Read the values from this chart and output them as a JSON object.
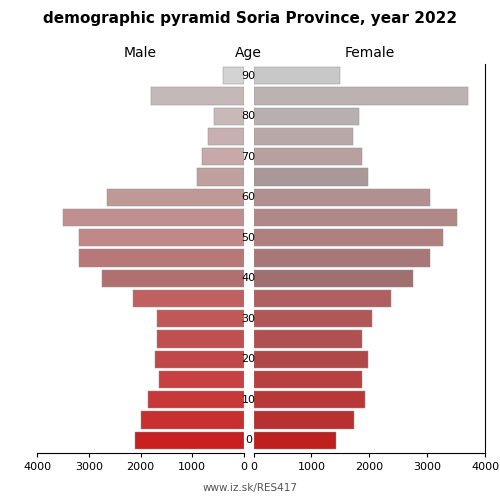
{
  "title": "demographic pyramid Soria Province, year 2022",
  "label_male": "Male",
  "label_female": "Female",
  "label_age": "Age",
  "footer": "www.iz.sk/RES417",
  "age_groups": [
    0,
    5,
    10,
    15,
    20,
    25,
    30,
    35,
    40,
    45,
    50,
    55,
    60,
    65,
    70,
    75,
    80,
    85,
    90
  ],
  "age_tick_values": [
    0,
    10,
    20,
    30,
    40,
    50,
    60,
    70,
    80,
    90
  ],
  "male_values": [
    2100,
    2000,
    1850,
    1650,
    1720,
    1680,
    1680,
    2150,
    2750,
    3200,
    3200,
    3500,
    2650,
    900,
    800,
    680,
    580,
    1800,
    400
  ],
  "female_values": [
    1420,
    1730,
    1920,
    1870,
    1970,
    1870,
    2050,
    2380,
    2750,
    3050,
    3280,
    3520,
    3050,
    1980,
    1870,
    1720,
    1820,
    3700,
    1500
  ],
  "xlim": 4000,
  "bar_height": 0.85,
  "colors_male": [
    "#c82020",
    "#c83030",
    "#c83838",
    "#c84040",
    "#c04848",
    "#c05050",
    "#c05858",
    "#c06060",
    "#b07070",
    "#b87878",
    "#c08888",
    "#c09090",
    "#c09898",
    "#c09f9f",
    "#c8a8a8",
    "#c8b0b0",
    "#c8b8b8",
    "#c4b8b8",
    "#d3d3d3"
  ],
  "colors_female": [
    "#be2020",
    "#b83030",
    "#b83838",
    "#b84040",
    "#b04848",
    "#b05050",
    "#b05858",
    "#b06060",
    "#a07070",
    "#a87878",
    "#b08080",
    "#b08888",
    "#b09090",
    "#aa9898",
    "#b8a0a0",
    "#b8a8a8",
    "#b8b0b0",
    "#bcb2b2",
    "#c8c8c8"
  ],
  "background_color": "#ffffff",
  "title_fontsize": 11,
  "label_fontsize": 10,
  "tick_fontsize": 8
}
